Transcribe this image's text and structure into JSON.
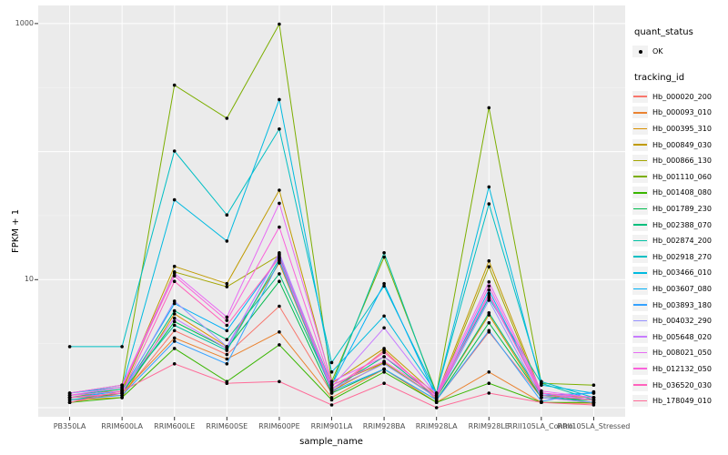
{
  "figure": {
    "x_axis": {
      "title": "sample_name"
    },
    "y_axis": {
      "title": "FPKM + 1",
      "ticks": [
        "10",
        "1000"
      ]
    },
    "legend": {
      "quant_title": "quant_status",
      "quant_items": [
        {
          "label": "OK"
        }
      ],
      "tracking_title": "tracking_id"
    }
  },
  "colors": {
    "panel_bg": "#EBEBEB",
    "grid_major": "#FFFFFF",
    "grid_minor": "#F5F5F5",
    "tick_mark": "#333333",
    "tick_text": "#4D4D4D",
    "legend_key_bg": "#F2F2F2",
    "marker": "#000000"
  },
  "chart_data": {
    "type": "line",
    "title": "",
    "xlabel": "sample_name",
    "ylabel": "FPKM + 1",
    "y_scale": "log10",
    "ylim": [
      0.9,
      1400
    ],
    "yticks": [
      10,
      1000
    ],
    "grid": true,
    "legend_position": "right",
    "quant_status": "OK",
    "categories": [
      "PB350LA",
      "RRIM600LA",
      "RRIM600LE",
      "RRIM600SE",
      "RRIM600PE",
      "RRIM901LA",
      "RRIM928BA",
      "RRIM928LA",
      "RRIM928LE",
      "RRII105LA_Control",
      "RRII105LA_Stressed"
    ],
    "series": [
      {
        "name": "Hb_000020_200",
        "color": "#F8766D",
        "values": [
          1.2,
          1.25,
          4.0,
          2.6,
          6.2,
          1.3,
          2.8,
          1.15,
          3.9,
          1.2,
          1.1
        ]
      },
      {
        "name": "Hb_000093_010",
        "color": "#EA8331",
        "values": [
          1.1,
          1.3,
          3.5,
          2.4,
          3.9,
          1.2,
          2.0,
          1.1,
          1.9,
          1.1,
          1.08
        ]
      },
      {
        "name": "Hb_000395_310",
        "color": "#D89000",
        "values": [
          1.15,
          1.2,
          5.4,
          3.0,
          13.5,
          1.35,
          2.25,
          1.2,
          5.3,
          1.2,
          1.15
        ]
      },
      {
        "name": "Hb_000849_030",
        "color": "#C09B00",
        "values": [
          1.2,
          1.4,
          12.7,
          9.3,
          50,
          1.55,
          2.9,
          1.25,
          14,
          1.3,
          1.2
        ]
      },
      {
        "name": "Hb_000866_130",
        "color": "#A3A500",
        "values": [
          1.25,
          1.35,
          11.5,
          8.8,
          15.5,
          1.5,
          2.25,
          1.2,
          12.6,
          1.25,
          1.2
        ]
      },
      {
        "name": "Hb_001110_060",
        "color": "#7CAE00",
        "values": [
          1.3,
          1.5,
          330,
          182,
          990,
          1.6,
          15,
          1.3,
          220,
          1.55,
          1.5
        ]
      },
      {
        "name": "Hb_001408_080",
        "color": "#39B600",
        "values": [
          1.1,
          1.2,
          2.9,
          1.6,
          3.1,
          1.15,
          1.9,
          1.1,
          1.55,
          1.1,
          1.1
        ]
      },
      {
        "name": "Hb_001789_230",
        "color": "#00BB4E",
        "values": [
          1.15,
          1.3,
          4.7,
          2.9,
          9.7,
          1.3,
          2.0,
          1.15,
          4.6,
          1.2,
          1.15
        ]
      },
      {
        "name": "Hb_002388_070",
        "color": "#00BF7D",
        "values": [
          1.2,
          1.3,
          5.7,
          3.4,
          11.1,
          1.4,
          2.5,
          1.2,
          5.5,
          1.25,
          1.1
        ]
      },
      {
        "name": "Hb_002874_200",
        "color": "#00C1A3",
        "values": [
          1.25,
          1.4,
          4.4,
          2.8,
          14.5,
          1.5,
          16.2,
          1.25,
          7.2,
          1.55,
          1.15
        ]
      },
      {
        "name": "Hb_002918_270",
        "color": "#00BFC4",
        "values": [
          3.0,
          3.0,
          101,
          32,
          150,
          2.25,
          8.9,
          1.3,
          39,
          1.6,
          1.2
        ]
      },
      {
        "name": "Hb_003466_010",
        "color": "#00BAE0",
        "values": [
          1.3,
          1.45,
          42,
          20,
          255,
          1.9,
          5.2,
          1.3,
          53,
          1.5,
          1.3
        ]
      },
      {
        "name": "Hb_003607_080",
        "color": "#00B0F6",
        "values": [
          1.2,
          1.35,
          6.5,
          4.0,
          15,
          1.5,
          9.3,
          1.2,
          8.3,
          1.25,
          1.3
        ]
      },
      {
        "name": "Hb_003893_180",
        "color": "#35A2FF",
        "values": [
          1.15,
          1.25,
          3.3,
          2.2,
          14,
          1.35,
          2.0,
          1.15,
          4.0,
          1.12,
          1.33
        ]
      },
      {
        "name": "Hb_004032_290",
        "color": "#9590FF",
        "values": [
          1.2,
          1.3,
          6.8,
          3.0,
          15.8,
          1.4,
          2.2,
          1.2,
          6.9,
          1.2,
          1.1
        ]
      },
      {
        "name": "Hb_005648_020",
        "color": "#C77CFF",
        "values": [
          1.25,
          1.35,
          5.0,
          2.9,
          16.2,
          1.45,
          4.2,
          1.25,
          7.5,
          1.3,
          1.15
        ]
      },
      {
        "name": "Hb_008021_050",
        "color": "#E76BF3",
        "values": [
          1.3,
          1.5,
          11.2,
          5.1,
          39.5,
          1.6,
          2.5,
          1.3,
          9.6,
          1.35,
          1.2
        ]
      },
      {
        "name": "Hb_012132_050",
        "color": "#FA62DB",
        "values": [
          1.25,
          1.45,
          10.7,
          4.8,
          25.7,
          1.5,
          2.3,
          1.25,
          8.9,
          1.3,
          1.2
        ]
      },
      {
        "name": "Hb_036520_030",
        "color": "#FF62BC",
        "values": [
          1.2,
          1.3,
          9.7,
          4.4,
          14.8,
          1.4,
          2.7,
          1.2,
          7.8,
          1.25,
          1.15
        ]
      },
      {
        "name": "Hb_178049_010",
        "color": "#FF6A98",
        "values": [
          1.1,
          1.35,
          2.2,
          1.55,
          1.6,
          1.05,
          1.55,
          1.0,
          1.3,
          1.1,
          1.05
        ]
      }
    ]
  }
}
